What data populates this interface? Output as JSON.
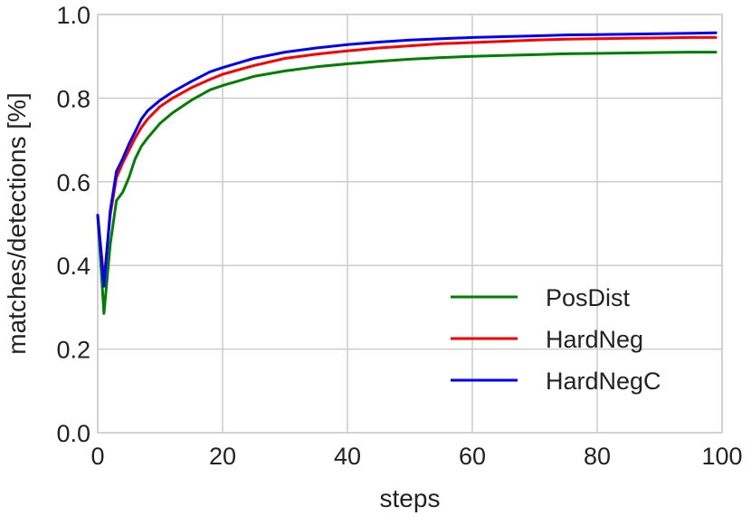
{
  "chart_data": {
    "type": "line",
    "title": "",
    "xlabel": "steps",
    "ylabel": "matches/detections [%]",
    "xlim": [
      0,
      100
    ],
    "ylim": [
      0.0,
      1.0
    ],
    "xticks": [
      0,
      20,
      40,
      60,
      80,
      100
    ],
    "xtick_labels": [
      "0",
      "20",
      "40",
      "60",
      "80",
      "100"
    ],
    "yticks": [
      0.0,
      0.2,
      0.4,
      0.6,
      0.8,
      1.0
    ],
    "ytick_labels": [
      "0.0",
      "0.2",
      "0.4",
      "0.6",
      "0.8",
      "1.0"
    ],
    "grid": true,
    "legend_position": "lower-right",
    "x": [
      0,
      1,
      2,
      3,
      4,
      5,
      6,
      7,
      8,
      10,
      12,
      15,
      18,
      20,
      25,
      30,
      35,
      40,
      45,
      50,
      55,
      60,
      65,
      70,
      75,
      80,
      85,
      90,
      95,
      99
    ],
    "series": [
      {
        "name": "PosDist",
        "color": "#008000",
        "values": [
          0.52,
          0.285,
          0.45,
          0.555,
          0.575,
          0.61,
          0.655,
          0.685,
          0.705,
          0.74,
          0.765,
          0.795,
          0.82,
          0.83,
          0.852,
          0.865,
          0.875,
          0.882,
          0.888,
          0.893,
          0.897,
          0.9,
          0.902,
          0.904,
          0.906,
          0.907,
          0.908,
          0.909,
          0.91,
          0.91
        ]
      },
      {
        "name": "HardNeg",
        "color": "#ff0000",
        "values": [
          0.52,
          0.365,
          0.52,
          0.61,
          0.645,
          0.675,
          0.705,
          0.73,
          0.75,
          0.78,
          0.8,
          0.825,
          0.845,
          0.857,
          0.878,
          0.895,
          0.905,
          0.913,
          0.92,
          0.925,
          0.93,
          0.933,
          0.936,
          0.939,
          0.941,
          0.942,
          0.943,
          0.944,
          0.945,
          0.945
        ]
      },
      {
        "name": "HardNegC",
        "color": "#0000ff",
        "values": [
          0.52,
          0.35,
          0.53,
          0.625,
          0.655,
          0.69,
          0.72,
          0.75,
          0.77,
          0.795,
          0.815,
          0.84,
          0.863,
          0.873,
          0.895,
          0.91,
          0.92,
          0.928,
          0.934,
          0.939,
          0.942,
          0.945,
          0.947,
          0.949,
          0.951,
          0.952,
          0.953,
          0.954,
          0.955,
          0.956
        ]
      }
    ]
  }
}
